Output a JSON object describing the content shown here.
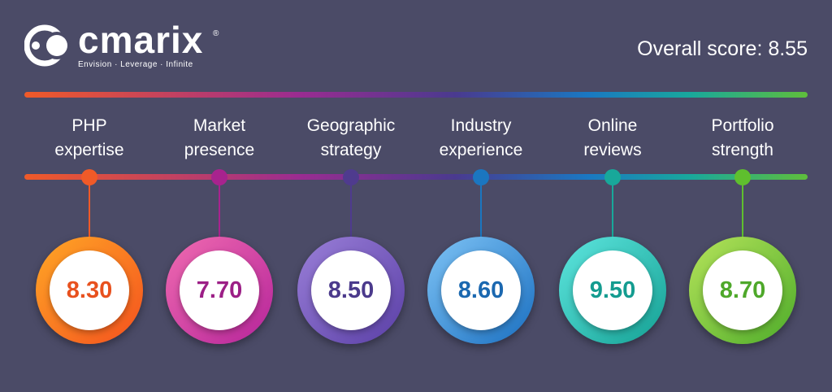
{
  "logo": {
    "brand": "cmarix",
    "registered": "®",
    "tagline": "Envision  ·  Leverage  ·  Infinite"
  },
  "overall_score": "Overall score: 8.55",
  "items": [
    {
      "line1": "PHP",
      "line2": "expertise",
      "score": "8.30",
      "color": "#f05a28",
      "ring_start": "#ffa726",
      "ring_end": "#f4511e",
      "text_color": "#e8511e"
    },
    {
      "line1": "Market",
      "line2": "presence",
      "score": "7.70",
      "color": "#a8238e",
      "ring_start": "#f06bb0",
      "ring_end": "#b5249a",
      "text_color": "#9c1f86"
    },
    {
      "line1": "Geographic",
      "line2": "strategy",
      "score": "8.50",
      "color": "#4f3b8e",
      "ring_start": "#9a7fd8",
      "ring_end": "#5a3fa6",
      "text_color": "#4b3a8c"
    },
    {
      "line1": "Industry",
      "line2": "experience",
      "score": "8.60",
      "color": "#1b76c0",
      "ring_start": "#7ec3f5",
      "ring_end": "#1a6fc0",
      "text_color": "#1b68b0"
    },
    {
      "line1": "Online",
      "line2": "reviews",
      "score": "9.50",
      "color": "#18a89a",
      "ring_start": "#5ee6df",
      "ring_end": "#14a093",
      "text_color": "#149c90"
    },
    {
      "line1": "Portfolio",
      "line2": "strength",
      "score": "8.70",
      "color": "#5fbf2e",
      "ring_start": "#b5e35a",
      "ring_end": "#4eac2a",
      "text_color": "#4ea82a"
    }
  ]
}
